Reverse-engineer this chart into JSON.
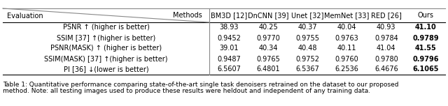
{
  "headers_methods": [
    "BM3D [12]",
    "DnCNN [39]",
    "Unet [32]",
    "MemNet [33]",
    "RED [26]",
    "Ours"
  ],
  "header_left_top": "Methods",
  "header_left_bottom": "Evaluation",
  "rows": [
    {
      "label": "PSNR ↑ (higher is better)",
      "values": [
        "38.93",
        "40.25",
        "40.37",
        "40.04",
        "40.93",
        "41.10"
      ],
      "bold_last": true
    },
    {
      "label": "SSIM [37] ↑(higher is better)",
      "values": [
        "0.9452",
        "0.9770",
        "0.9755",
        "0.9763",
        "0.9784",
        "0.9789"
      ],
      "bold_last": true
    },
    {
      "label": "PSNR(MASK) ↑ (higher is better)",
      "values": [
        "39.01",
        "40.34",
        "40.48",
        "40.11",
        "41.04",
        "41.55"
      ],
      "bold_last": true
    },
    {
      "label": "SSIM(MASK) [37] ↑(higher is better)",
      "values": [
        "0.9487",
        "0.9765",
        "0.9752",
        "0.9760",
        "0.9780",
        "0.9796"
      ],
      "bold_last": true
    },
    {
      "label": "PI [36] ↓(lower is better)",
      "values": [
        "6.5607",
        "6.4801",
        "6.5367",
        "6.2536",
        "6.4676",
        "6.1065"
      ],
      "bold_last": true
    }
  ],
  "caption_line1": "Table 1: Quantitative performance comparing state-of-the-art single task denoisers retrained on the dataset to our proposed",
  "caption_line2": "method. Note: all testing images used to produce these results were heldout and independent of any training data.",
  "background_color": "#ffffff",
  "font_size": 7.0,
  "caption_font_size": 6.5,
  "line_color": "#888888",
  "text_color": "#000000"
}
